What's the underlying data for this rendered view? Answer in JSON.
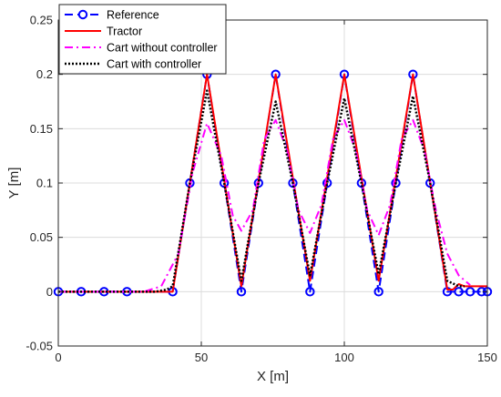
{
  "chart_data": {
    "type": "line",
    "title": "",
    "xlabel": "X [m]",
    "ylabel": "Y [m]",
    "xlim": [
      0,
      150
    ],
    "ylim": [
      -0.05,
      0.25
    ],
    "xticks": [
      0,
      50,
      100,
      150
    ],
    "yticks": [
      -0.05,
      0,
      0.05,
      0.1,
      0.15,
      0.2,
      0.25
    ],
    "xtick_labels": [
      "0",
      "50",
      "100",
      "150"
    ],
    "ytick_labels": [
      "-0.05",
      "0",
      "0.05",
      "0.1",
      "0.15",
      "0.2",
      "0.25"
    ],
    "grid": true,
    "legend_position": "top-left",
    "series": [
      {
        "name": "Reference",
        "color": "#0000ff",
        "style": "dashed-with-circles",
        "x": [
          0,
          8,
          16,
          24,
          40,
          46,
          52,
          58,
          64,
          70,
          76,
          82,
          88,
          94,
          100,
          106,
          112,
          118,
          124,
          130,
          136,
          140,
          144,
          148,
          150
        ],
        "y": [
          0,
          0,
          0,
          0,
          0,
          0.1,
          0.2,
          0.1,
          0,
          0.1,
          0.2,
          0.1,
          0,
          0.1,
          0.2,
          0.1,
          0,
          0.1,
          0.2,
          0.1,
          0,
          0,
          0,
          0,
          0
        ]
      },
      {
        "name": "Tractor",
        "color": "#ff0000",
        "style": "solid",
        "x": [
          0,
          40,
          52,
          64,
          76,
          88,
          100,
          112,
          124,
          136,
          138,
          140,
          142,
          150
        ],
        "y": [
          0,
          0,
          0.2,
          0.005,
          0.2,
          0.01,
          0.2,
          0.01,
          0.2,
          0.002,
          0.002,
          0.007,
          0.005,
          0.005
        ]
      },
      {
        "name": "Cart without controller",
        "color": "#ff00ff",
        "style": "dashdot",
        "x": [
          0,
          30,
          36,
          42,
          47,
          52,
          57,
          61,
          64,
          68,
          72,
          76,
          80,
          84,
          88,
          92,
          96,
          100,
          104,
          108,
          112,
          116,
          120,
          124,
          128,
          132,
          136,
          140,
          144
        ],
        "y": [
          0,
          0,
          0.005,
          0.035,
          0.11,
          0.155,
          0.125,
          0.07,
          0.056,
          0.075,
          0.14,
          0.158,
          0.13,
          0.075,
          0.054,
          0.08,
          0.14,
          0.158,
          0.13,
          0.075,
          0.052,
          0.08,
          0.14,
          0.158,
          0.13,
          0.075,
          0.035,
          0.015,
          0.006
        ]
      },
      {
        "name": "Cart with controller",
        "color": "#000000",
        "style": "dotted",
        "x": [
          0,
          34,
          38,
          40,
          46,
          52,
          58,
          64,
          70,
          76,
          82,
          88,
          94,
          100,
          106,
          112,
          118,
          124,
          130,
          136,
          140,
          142
        ],
        "y": [
          0,
          0,
          0.002,
          0.005,
          0.1,
          0.185,
          0.1,
          0.01,
          0.1,
          0.175,
          0.1,
          0.015,
          0.1,
          0.178,
          0.1,
          0.016,
          0.1,
          0.18,
          0.1,
          0.01,
          0.005,
          0.005
        ]
      }
    ]
  }
}
